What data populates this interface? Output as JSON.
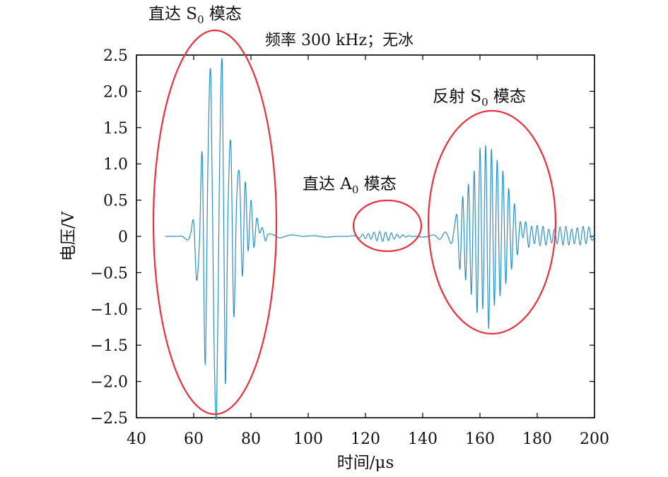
{
  "chart_data": {
    "type": "line",
    "title": "频率 300 kHz；无冰",
    "xlabel": "时间/μs",
    "ylabel": "电压/V",
    "xlim": [
      40,
      200
    ],
    "ylim": [
      -2.5,
      2.5
    ],
    "xticks": [
      40,
      60,
      80,
      100,
      120,
      140,
      160,
      180,
      200
    ],
    "xtick_labels": [
      "40",
      "60",
      "80",
      "100",
      "120",
      "140",
      "160",
      "180",
      "200"
    ],
    "yticks": [
      2.5,
      2.0,
      1.5,
      1.0,
      0.5,
      0,
      -0.5,
      -1.0,
      -1.5,
      -2.0,
      -2.5
    ],
    "ytick_labels": [
      "2.5",
      "2.0",
      "1.5",
      "1.0",
      "0.5",
      "0",
      "−0.5",
      "−1.0",
      "−1.5",
      "−2.0",
      "−2.5"
    ],
    "grid": false,
    "line_color": "#2a8fc7",
    "annotation_color": "#e8313f",
    "series": [
      {
        "x": [
          50,
          52,
          54,
          56,
          58,
          59,
          60,
          61,
          62,
          63,
          64,
          65,
          66,
          67,
          68,
          69,
          70,
          71,
          72,
          73,
          74,
          75,
          76,
          77,
          78,
          79,
          80,
          81,
          82,
          83,
          84,
          85,
          86,
          88,
          90,
          94,
          98,
          102,
          106,
          110,
          114,
          116,
          118,
          119,
          120,
          121,
          122,
          123,
          124,
          125,
          126,
          127,
          128,
          129,
          130,
          131,
          132,
          133,
          134,
          135,
          136,
          138,
          140,
          142,
          144,
          146,
          148,
          150,
          151,
          152,
          153,
          154,
          155,
          156,
          157,
          158,
          159,
          160,
          161,
          162,
          163,
          164,
          165,
          166,
          167,
          168,
          169,
          170,
          171,
          172,
          173,
          174,
          175,
          176,
          177,
          178,
          179,
          180,
          181,
          182,
          183,
          184,
          185,
          186,
          187,
          188,
          189,
          190,
          191,
          192,
          193,
          194,
          195,
          196,
          197,
          198,
          199,
          200
        ],
        "y": [
          0,
          0,
          0,
          0,
          -0.05,
          0.05,
          0.2,
          -0.6,
          -0.1,
          1.13,
          -1.77,
          1.1,
          2.22,
          -1.2,
          -2.45,
          0.8,
          2.35,
          -2.0,
          0.4,
          1.27,
          -1.1,
          0.5,
          0.85,
          -0.55,
          0.75,
          -0.2,
          0.5,
          -0.15,
          0.25,
          0.05,
          0.12,
          -0.06,
          0.03,
          0.02,
          -0.02,
          0.02,
          0,
          0.01,
          -0.01,
          0,
          0,
          0.01,
          -0.02,
          0.03,
          -0.03,
          0.04,
          -0.04,
          0.06,
          -0.06,
          0.07,
          -0.07,
          0.06,
          -0.06,
          0.05,
          -0.04,
          0.03,
          -0.02,
          0.02,
          -0.01,
          0.01,
          0,
          0,
          -0.01,
          0,
          0.02,
          -0.04,
          0.06,
          -0.1,
          0.1,
          0.28,
          -0.45,
          0.55,
          -0.6,
          0.72,
          -0.8,
          0.9,
          -1.05,
          1.22,
          -1.0,
          1.25,
          -1.27,
          1.2,
          -0.95,
          1.05,
          -0.82,
          0.9,
          -0.65,
          0.66,
          -0.45,
          0.45,
          -0.25,
          0.2,
          -0.02,
          0.2,
          -0.15,
          0.14,
          -0.1,
          0.15,
          -0.13,
          0.14,
          -0.12,
          0.1,
          -0.09,
          0.1,
          -0.1,
          0.13,
          -0.12,
          0.14,
          -0.12,
          0.1,
          -0.1,
          0.12,
          -0.12,
          0.14,
          -0.1,
          0.13,
          -0.05,
          0.0
        ]
      }
    ],
    "annotations": [
      {
        "text": "直达 S",
        "sub": "0",
        "text2": " 模态"
      },
      {
        "text": "直达 A",
        "sub": "0",
        "text2": " 模态"
      },
      {
        "text": "反射 S",
        "sub": "0",
        "text2": " 模态"
      }
    ]
  }
}
